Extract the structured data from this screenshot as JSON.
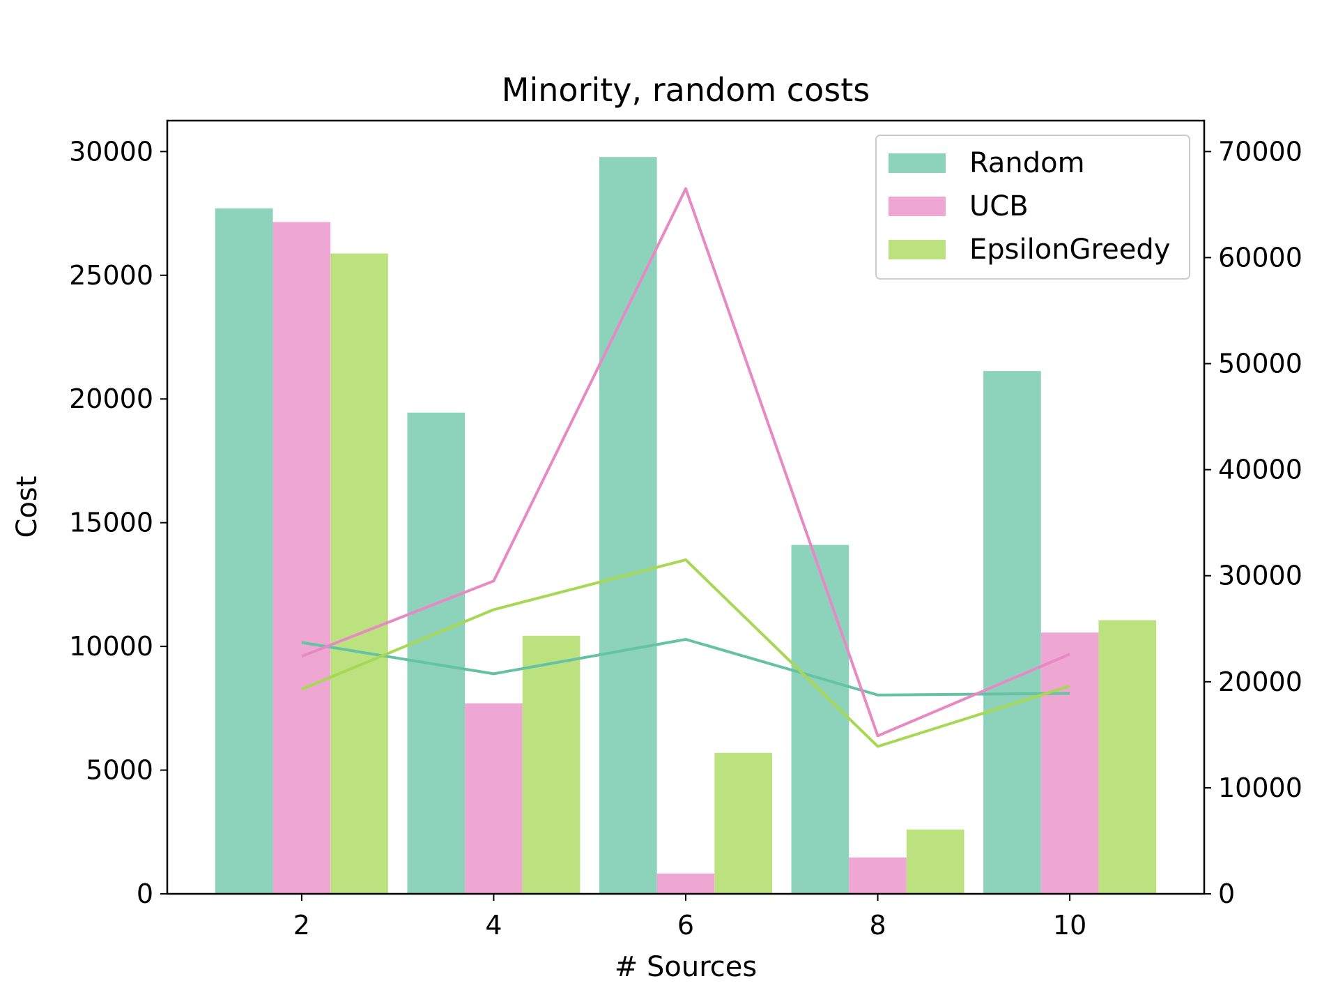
{
  "chart_data": {
    "type": "bar",
    "title": "Minority, random costs",
    "xlabel": "# Sources",
    "ylabel": "Cost",
    "y2label": "",
    "categories": [
      "2",
      "4",
      "6",
      "8",
      "10"
    ],
    "ylim": [
      0,
      31250
    ],
    "y2lim": [
      0,
      72917
    ],
    "yticks": [
      "0",
      "5000",
      "10000",
      "15000",
      "20000",
      "25000",
      "30000"
    ],
    "y2ticks": [
      "0",
      "10000",
      "20000",
      "30000",
      "40000",
      "50000",
      "60000",
      "70000"
    ],
    "xticks": [
      "2",
      "4",
      "6",
      "8",
      "10"
    ],
    "legend_position": "top-right",
    "grid": false,
    "bar_series": [
      {
        "name": "Random",
        "color": "#8dd3bb",
        "values": [
          27700,
          19450,
          29780,
          14100,
          21130
        ]
      },
      {
        "name": "UCB",
        "color": "#eda7d2",
        "values": [
          27150,
          7700,
          820,
          1470,
          10560
        ]
      },
      {
        "name": "EpsilonGreedy",
        "color": "#bce27f",
        "values": [
          25880,
          10430,
          5700,
          2600,
          11060
        ]
      }
    ],
    "line_series": [
      {
        "name": "Random",
        "color": "#66c2a5",
        "axis": "right",
        "values": [
          23700,
          20750,
          24000,
          18750,
          18900
        ]
      },
      {
        "name": "UCB",
        "color": "#e78ac3",
        "axis": "right",
        "values": [
          22400,
          29500,
          66500,
          14900,
          22600
        ]
      },
      {
        "name": "EpsilonGreedy",
        "color": "#a6d854",
        "axis": "right",
        "values": [
          19300,
          26800,
          31500,
          13900,
          19600
        ]
      }
    ]
  }
}
